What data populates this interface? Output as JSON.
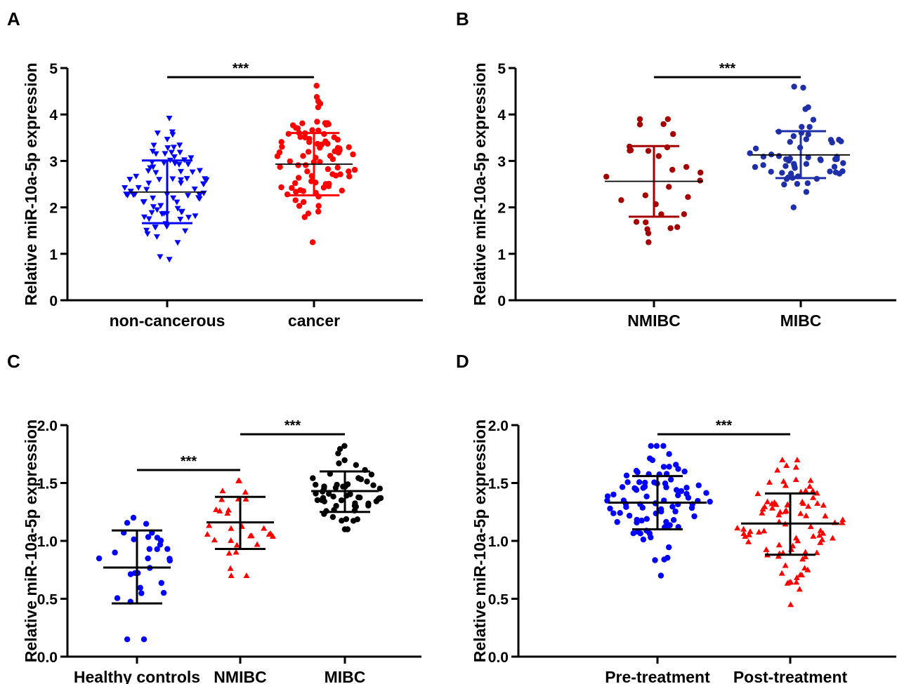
{
  "chart_data": [
    {
      "panel_label": "A",
      "type": "scatter",
      "ylabel": "Relative miR-10a-5p expression",
      "ylim": [
        0,
        5
      ],
      "yticks": [
        0,
        1,
        2,
        3,
        4,
        5
      ],
      "ytick_labels": [
        "0",
        "1",
        "2",
        "3",
        "4",
        "5"
      ],
      "categories": [
        "non-cancerous",
        "cancer"
      ],
      "series": [
        {
          "category": "non-cancerous",
          "marker": "triangle-down",
          "color": "#0000ff",
          "mean": 2.33,
          "sd_low": 1.66,
          "sd_high": 3.01,
          "n": 88,
          "min": 0.88,
          "max": 3.92
        },
        {
          "category": "cancer",
          "marker": "circle",
          "color": "#ff0000",
          "mean": 2.93,
          "sd_low": 2.26,
          "sd_high": 3.6,
          "n": 88,
          "min": 1.25,
          "max": 4.62
        }
      ],
      "significance": [
        {
          "from": 0,
          "to": 1,
          "label": "***"
        }
      ]
    },
    {
      "panel_label": "B",
      "type": "scatter",
      "ylabel": "Relative miR-10a-5p expression",
      "ylim": [
        0,
        5
      ],
      "yticks": [
        0,
        1,
        2,
        3,
        4,
        5
      ],
      "ytick_labels": [
        "0",
        "1",
        "2",
        "3",
        "4",
        "5"
      ],
      "categories": [
        "NMIBC",
        "MIBC"
      ],
      "series": [
        {
          "category": "NMIBC",
          "marker": "circle",
          "color": "#a50000",
          "mean": 2.56,
          "sd_low": 1.8,
          "sd_high": 3.32,
          "n": 30,
          "min": 1.25,
          "max": 3.9
        },
        {
          "category": "MIBC",
          "marker": "circle",
          "color": "#1f2fa8",
          "mean": 3.13,
          "sd_low": 2.63,
          "sd_high": 3.64,
          "n": 58,
          "min": 2.0,
          "max": 4.6
        }
      ],
      "significance": [
        {
          "from": 0,
          "to": 1,
          "label": "***"
        }
      ]
    },
    {
      "panel_label": "C",
      "type": "scatter",
      "ylabel": "Relative miR-10a-5p expression",
      "ylim": [
        0,
        2
      ],
      "yticks": [
        0,
        0.5,
        1,
        1.5,
        2
      ],
      "ytick_labels": [
        "0.0",
        "0.5",
        "1.0",
        "1.5",
        "2.0"
      ],
      "categories": [
        "Healthy controls",
        "NMIBC",
        "MIBC"
      ],
      "series": [
        {
          "category": "Healthy controls",
          "marker": "circle",
          "color": "#0000ff",
          "mean": 0.77,
          "sd_low": 0.46,
          "sd_high": 1.09,
          "n": 30,
          "min": 0.15,
          "max": 1.2
        },
        {
          "category": "NMIBC",
          "marker": "triangle-up",
          "color": "#ff0000",
          "mean": 1.16,
          "sd_low": 0.93,
          "sd_high": 1.38,
          "n": 30,
          "min": 0.7,
          "max": 1.52
        },
        {
          "category": "MIBC",
          "marker": "circle",
          "color": "#000000",
          "mean": 1.43,
          "sd_low": 1.25,
          "sd_high": 1.6,
          "n": 58,
          "min": 1.1,
          "max": 1.82
        }
      ],
      "significance": [
        {
          "from": 0,
          "to": 1,
          "label": "***"
        },
        {
          "from": 1,
          "to": 2,
          "label": "***"
        }
      ]
    },
    {
      "panel_label": "D",
      "type": "scatter",
      "ylabel": "Relative miR-10a-5p expression",
      "ylim": [
        0,
        2
      ],
      "yticks": [
        0,
        0.5,
        1,
        1.5,
        2
      ],
      "ytick_labels": [
        "0.0",
        "0.5",
        "1.0",
        "1.5",
        "2.0"
      ],
      "categories": [
        "Pre-treatment",
        "Post-treatment"
      ],
      "series": [
        {
          "category": "Pre-treatment",
          "marker": "circle",
          "color": "#0000ff",
          "mean": 1.33,
          "sd_low": 1.1,
          "sd_high": 1.56,
          "n": 88,
          "min": 0.7,
          "max": 1.82
        },
        {
          "category": "Post-treatment",
          "marker": "triangle-up",
          "color": "#ff0000",
          "mean": 1.15,
          "sd_low": 0.88,
          "sd_high": 1.41,
          "n": 88,
          "min": 0.45,
          "max": 1.7
        }
      ],
      "significance": [
        {
          "from": 0,
          "to": 1,
          "label": "***"
        }
      ]
    }
  ]
}
